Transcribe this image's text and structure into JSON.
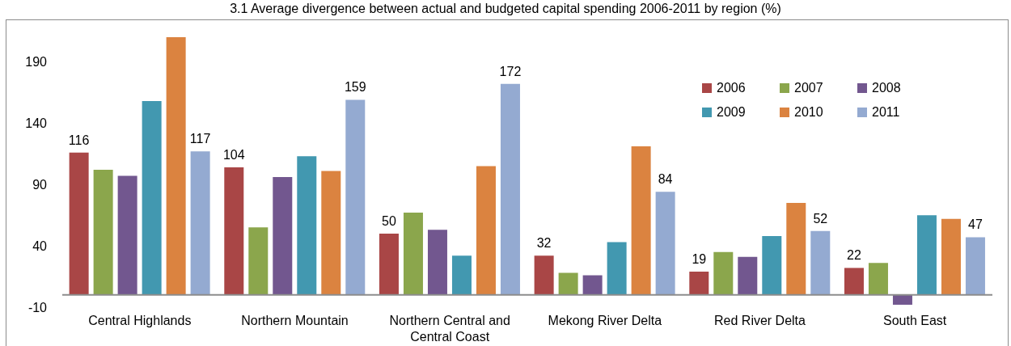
{
  "chart_data": {
    "type": "bar",
    "title": "3.1 Average divergence between actual and budgeted capital spending 2006-2011 by region (%)",
    "categories": [
      "Central Highlands",
      "Northern Mountain",
      "Northern Central and Central Coast",
      "Mekong River Delta",
      "Red River Delta",
      "South East"
    ],
    "series": [
      {
        "name": "2006",
        "color": "#a94646",
        "values": [
          116,
          104,
          50,
          32,
          19,
          22
        ],
        "value_labels": [
          "116",
          "104",
          "50",
          "32",
          "19",
          "22"
        ]
      },
      {
        "name": "2007",
        "color": "#8ba64c",
        "values": [
          102,
          55,
          67,
          18,
          35,
          26
        ]
      },
      {
        "name": "2008",
        "color": "#72578f",
        "values": [
          97,
          96,
          53,
          16,
          31,
          -8
        ]
      },
      {
        "name": "2009",
        "color": "#4298b0",
        "values": [
          158,
          113,
          32,
          43,
          48,
          65
        ]
      },
      {
        "name": "2010",
        "color": "#db8340",
        "values": [
          210,
          101,
          105,
          121,
          75,
          62
        ]
      },
      {
        "name": "2011",
        "color": "#94aad1",
        "values": [
          117,
          159,
          172,
          84,
          52,
          47
        ],
        "value_labels": [
          "117",
          "159",
          "172",
          "84",
          "52",
          "47"
        ]
      }
    ],
    "ylim": [
      -10,
      210
    ],
    "yticks": [
      -10,
      40,
      90,
      140,
      190
    ],
    "legend": "top right"
  }
}
